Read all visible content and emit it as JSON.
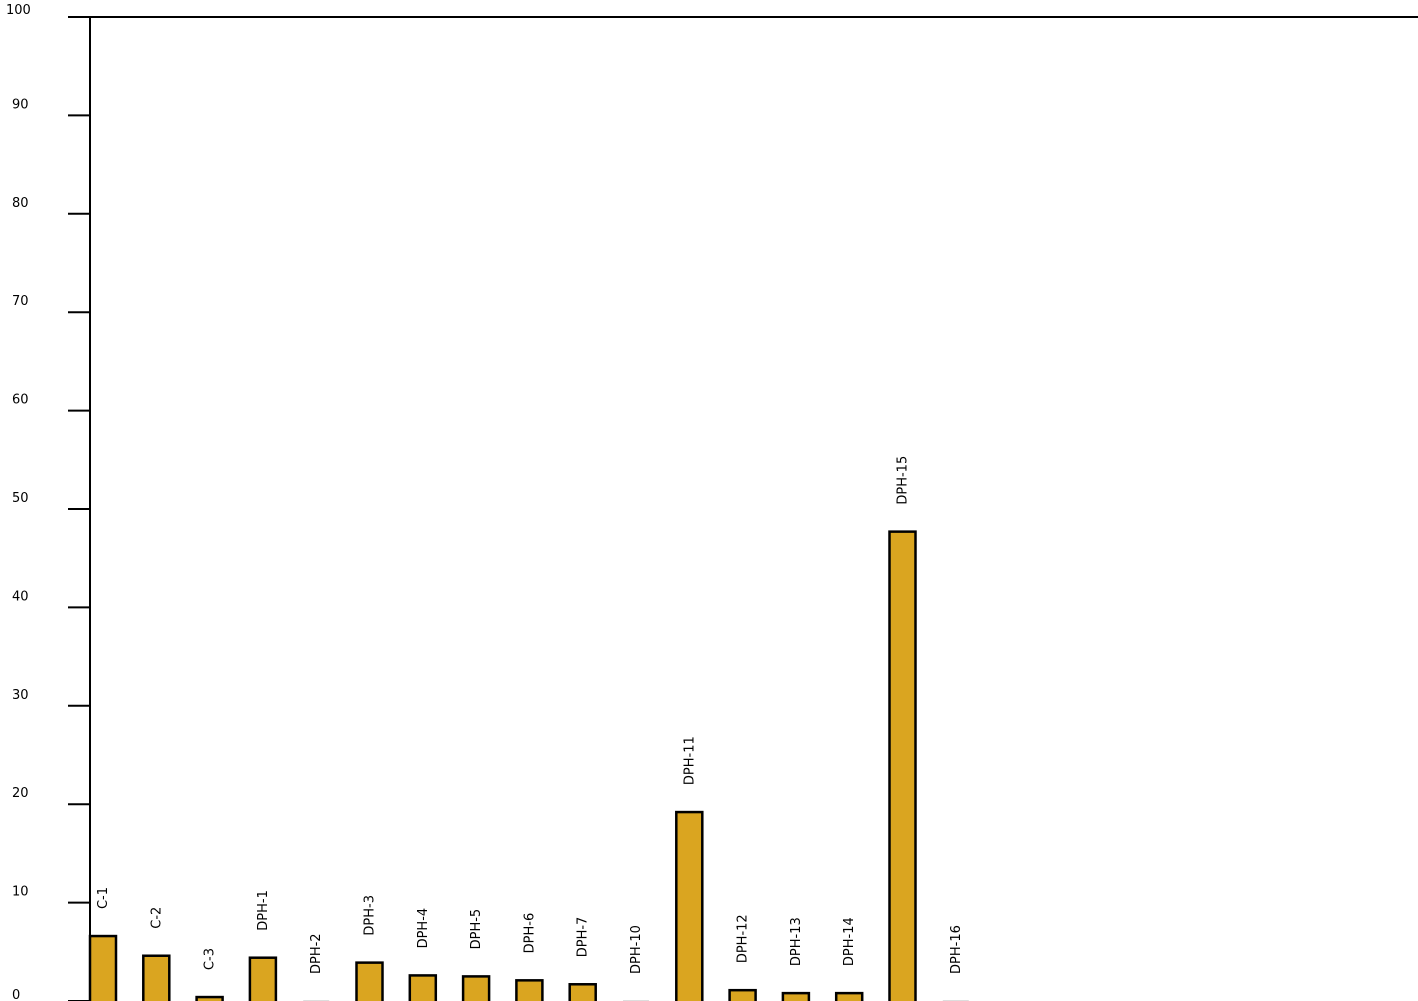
{
  "chart_data": {
    "type": "bar",
    "title": "",
    "xlabel": "",
    "ylabel": "",
    "ylim": [
      0,
      100
    ],
    "yticks": [
      0,
      10,
      20,
      30,
      40,
      50,
      60,
      70,
      80,
      90,
      100
    ],
    "grid": false,
    "legend": "none",
    "bar_color": "#DAA520",
    "bar_edge_color": "#000000",
    "categories": [
      "C-1",
      "C-2",
      "C-3",
      "DPH-1",
      "DPH-2",
      "DPH-3",
      "DPH-4",
      "DPH-5",
      "DPH-6",
      "DPH-7",
      "DPH-10",
      "DPH-11",
      "DPH-12",
      "DPH-13",
      "DPH-14",
      "DPH-15",
      "DPH-16"
    ],
    "values": [
      6.6,
      4.6,
      0.4,
      4.4,
      0.0,
      3.9,
      2.6,
      2.5,
      2.1,
      1.7,
      0.0,
      19.2,
      1.1,
      0.8,
      0.8,
      47.7,
      0.0
    ]
  }
}
